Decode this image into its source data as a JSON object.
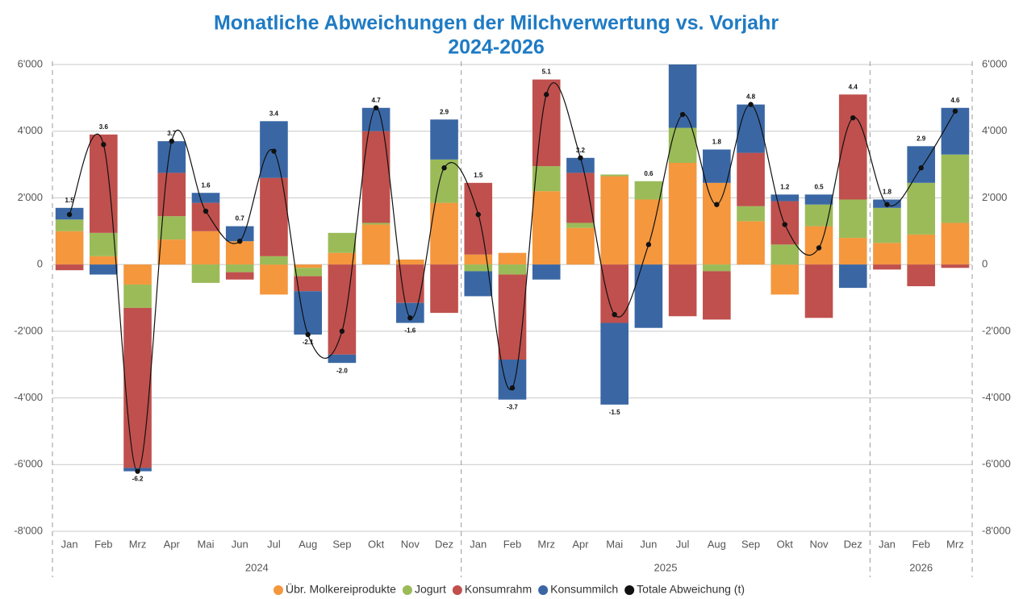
{
  "chart_data": {
    "type": "bar",
    "title": "Monatliche Abweichungen der Milchverwertung vs. Vorjahr",
    "subtitle": "2024-2026",
    "years": [
      {
        "label": "2024",
        "months": [
          "Jan",
          "Feb",
          "Mrz",
          "Apr",
          "Mai",
          "Jun",
          "Jul",
          "Aug",
          "Sep",
          "Okt",
          "Nov",
          "Dez"
        ]
      },
      {
        "label": "2025",
        "months": [
          "Jan",
          "Feb",
          "Mrz",
          "Apr",
          "Mai",
          "Jun",
          "Jul",
          "Aug",
          "Sep",
          "Okt",
          "Nov",
          "Dez"
        ]
      },
      {
        "label": "2026",
        "months": [
          "Jan",
          "Feb",
          "Mrz"
        ]
      }
    ],
    "stacked": true,
    "series": [
      {
        "name": "Übr. Molkereiprodukte",
        "color": "#f4973d",
        "values": [
          1000,
          250,
          -600,
          750,
          1000,
          700,
          -900,
          -100,
          350,
          1200,
          150,
          1850,
          300,
          350,
          2200,
          1100,
          2650,
          1950,
          3050,
          2450,
          1300,
          -900,
          1150,
          800,
          650,
          900,
          1250
        ]
      },
      {
        "name": "Jogurt",
        "color": "#9bbb59",
        "values": [
          350,
          700,
          -700,
          700,
          -550,
          -230,
          250,
          -250,
          600,
          50,
          0,
          1300,
          -200,
          -300,
          750,
          150,
          50,
          550,
          1050,
          -200,
          450,
          600,
          650,
          1150,
          1050,
          1550,
          2050
        ]
      },
      {
        "name": "Konsumrahm",
        "color": "#c0504d",
        "values": [
          -170,
          2950,
          -4800,
          1300,
          850,
          -220,
          2350,
          -450,
          -2700,
          2750,
          -1150,
          -1450,
          2150,
          -2550,
          2600,
          1500,
          -1750,
          0,
          -1550,
          -1450,
          1600,
          1300,
          -1600,
          3150,
          -150,
          -650,
          -100
        ]
      },
      {
        "name": "Konsummilch",
        "color": "#3a67a4",
        "values": [
          350,
          -300,
          -100,
          950,
          300,
          450,
          1700,
          -1300,
          -250,
          700,
          -600,
          1200,
          -750,
          -1200,
          -450,
          450,
          -2450,
          -1900,
          1950,
          1000,
          1450,
          200,
          300,
          -700,
          250,
          1100,
          1400
        ]
      },
      {
        "name": "Totale Abweichung (t)",
        "color": "#111111",
        "type": "line",
        "values": [
          1500,
          3600,
          -6200,
          3700,
          1600,
          700,
          3400,
          -2100,
          -2000,
          4700,
          -1600,
          2900,
          1500,
          -3700,
          5100,
          3200,
          -1500,
          600,
          4500,
          1800,
          4800,
          1200,
          500,
          4400,
          1800,
          2900,
          4600
        ],
        "value_labels": [
          "1.5",
          "3.6",
          "-6.2",
          "3.7",
          "1.6",
          "0.7",
          "3.4",
          "-2.1",
          "-2.0",
          "4.7",
          "-1.6",
          "2.9",
          "1.5",
          "-3.7",
          "5.1",
          "3.2",
          "-1.5",
          "0.6",
          null,
          "1.8",
          "4.8",
          "1.2",
          "0.5",
          "4.4",
          "1.8",
          "2.9",
          "4.6"
        ]
      }
    ],
    "ylim": [
      -8000,
      6000
    ],
    "yticks": [
      {
        "value": -8000,
        "label": "-8'000"
      },
      {
        "value": -6000,
        "label": "-6'000"
      },
      {
        "value": -4000,
        "label": "-4'000"
      },
      {
        "value": -2000,
        "label": "-2'000"
      },
      0,
      {
        "value": 2000,
        "label": "2'000"
      },
      {
        "value": 4000,
        "label": "4'000"
      },
      {
        "value": 6000,
        "label": "6'000"
      }
    ],
    "grid": true,
    "legend": "bottom"
  }
}
